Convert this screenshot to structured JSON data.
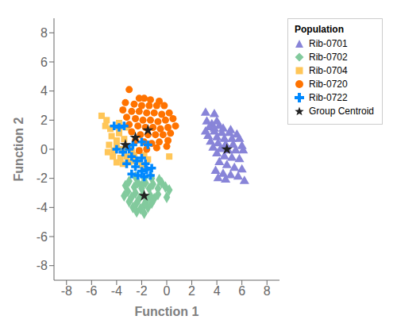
{
  "chart_data": {
    "type": "scatter",
    "xlabel": "Function 1",
    "ylabel": "Function 2",
    "xlim": [
      -9,
      9
    ],
    "ylim": [
      -9,
      9
    ],
    "xticks": [
      -8,
      -6,
      -4,
      -2,
      0,
      2,
      4,
      6,
      8
    ],
    "yticks": [
      -8,
      -6,
      -4,
      -2,
      0,
      2,
      4,
      6,
      8
    ],
    "grid": false,
    "legend": "right",
    "legend_title": "Population",
    "series": [
      {
        "name": "Rib-0701",
        "marker": "triangle",
        "color": "#8884d8",
        "values": [
          [
            3.1,
            2.5
          ],
          [
            3.8,
            2.4
          ],
          [
            3.2,
            1.9
          ],
          [
            4.0,
            1.9
          ],
          [
            3.6,
            1.7
          ],
          [
            4.2,
            1.6
          ],
          [
            3.4,
            1.5
          ],
          [
            4.5,
            1.4
          ],
          [
            3.8,
            1.4
          ],
          [
            5.1,
            1.3
          ],
          [
            3.1,
            1.2
          ],
          [
            3.8,
            1.2
          ],
          [
            4.4,
            1.1
          ],
          [
            5.0,
            1.1
          ],
          [
            5.6,
            1.0
          ],
          [
            3.3,
            0.9
          ],
          [
            4.0,
            0.8
          ],
          [
            4.6,
            0.7
          ],
          [
            5.2,
            0.7
          ],
          [
            5.8,
            0.7
          ],
          [
            3.5,
            0.5
          ],
          [
            4.1,
            0.4
          ],
          [
            4.7,
            0.3
          ],
          [
            5.3,
            0.3
          ],
          [
            6.0,
            0.2
          ],
          [
            3.7,
            0.1
          ],
          [
            4.3,
            0.0
          ],
          [
            4.9,
            -0.1
          ],
          [
            5.5,
            -0.1
          ],
          [
            6.1,
            -0.1
          ],
          [
            4.0,
            -0.3
          ],
          [
            4.6,
            -0.5
          ],
          [
            5.2,
            -0.6
          ],
          [
            5.8,
            -0.7
          ],
          [
            4.2,
            -0.9
          ],
          [
            4.8,
            -1.1
          ],
          [
            5.4,
            -1.3
          ],
          [
            6.0,
            -1.4
          ],
          [
            3.9,
            -1.5
          ],
          [
            4.5,
            -1.7
          ],
          [
            5.1,
            -1.8
          ],
          [
            5.7,
            -1.9
          ],
          [
            4.1,
            -2.0
          ],
          [
            4.7,
            -2.1
          ],
          [
            6.2,
            -2.2
          ]
        ]
      },
      {
        "name": "Rib-0702",
        "marker": "diamond",
        "color": "#82ca9d",
        "values": [
          [
            -2.5,
            -1.9
          ],
          [
            -1.8,
            -2.0
          ],
          [
            -1.2,
            -2.0
          ],
          [
            -0.6,
            -2.1
          ],
          [
            -3.0,
            -2.2
          ],
          [
            -2.3,
            -2.3
          ],
          [
            -1.7,
            -2.3
          ],
          [
            -1.1,
            -2.4
          ],
          [
            -0.4,
            -2.3
          ],
          [
            -3.3,
            -2.5
          ],
          [
            -2.6,
            -2.6
          ],
          [
            -2.0,
            -2.7
          ],
          [
            -1.4,
            -2.7
          ],
          [
            -0.7,
            -2.7
          ],
          [
            -0.1,
            -2.6
          ],
          [
            -3.1,
            -2.9
          ],
          [
            -2.5,
            -3.0
          ],
          [
            -1.9,
            -3.1
          ],
          [
            -1.3,
            -3.2
          ],
          [
            -0.7,
            -3.1
          ],
          [
            -3.4,
            -3.2
          ],
          [
            -2.8,
            -3.3
          ],
          [
            -2.2,
            -3.4
          ],
          [
            -1.6,
            -3.5
          ],
          [
            -1.0,
            -3.4
          ],
          [
            -3.0,
            -3.6
          ],
          [
            -2.4,
            -3.7
          ],
          [
            -1.8,
            -3.8
          ],
          [
            -1.2,
            -3.7
          ],
          [
            -2.7,
            -4.0
          ],
          [
            -2.1,
            -4.1
          ],
          [
            -1.5,
            -4.0
          ],
          [
            -2.4,
            -4.3
          ],
          [
            -1.8,
            -4.4
          ],
          [
            -2.0,
            -2.5
          ],
          [
            0.2,
            -2.8
          ],
          [
            0.0,
            -3.3
          ]
        ]
      },
      {
        "name": "Rib-0704",
        "marker": "square",
        "color": "#ffc658",
        "values": [
          [
            -5.2,
            2.3
          ],
          [
            -4.8,
            2.0
          ],
          [
            -4.9,
            1.6
          ],
          [
            -4.5,
            1.4
          ],
          [
            -3.8,
            1.4
          ],
          [
            -3.2,
            1.5
          ],
          [
            -3.8,
            1.1
          ],
          [
            -4.4,
            0.9
          ],
          [
            -4.0,
            0.6
          ],
          [
            -3.4,
            0.7
          ],
          [
            -4.6,
            0.3
          ],
          [
            -4.0,
            0.2
          ],
          [
            -3.5,
            0.0
          ],
          [
            -4.2,
            -0.1
          ],
          [
            -4.7,
            -0.2
          ],
          [
            -3.0,
            0.1
          ],
          [
            -4.3,
            -0.5
          ],
          [
            -3.7,
            -0.6
          ],
          [
            -3.2,
            -0.5
          ],
          [
            -2.6,
            -0.4
          ],
          [
            -4.0,
            -0.9
          ],
          [
            -3.5,
            -1.0
          ],
          [
            -3.0,
            -0.9
          ],
          [
            -2.5,
            -0.8
          ],
          [
            -2.8,
            -0.2
          ],
          [
            -2.2,
            -0.1
          ],
          [
            -1.8,
            -0.4
          ],
          [
            -2.0,
            -1.1
          ],
          [
            -1.5,
            -0.7
          ],
          [
            0.2,
            -0.5
          ],
          [
            -3.8,
            1.8
          ]
        ]
      },
      {
        "name": "Rib-0720",
        "marker": "circle",
        "color": "#ff7300",
        "values": [
          [
            -3.0,
            4.1
          ],
          [
            -2.2,
            3.5
          ],
          [
            -1.8,
            3.5
          ],
          [
            -1.3,
            3.4
          ],
          [
            -0.6,
            3.3
          ],
          [
            -3.3,
            3.2
          ],
          [
            -2.6,
            3.1
          ],
          [
            -2.0,
            3.0
          ],
          [
            -1.4,
            3.0
          ],
          [
            -0.8,
            3.0
          ],
          [
            -0.2,
            3.0
          ],
          [
            -3.5,
            2.7
          ],
          [
            -2.8,
            2.6
          ],
          [
            -2.2,
            2.6
          ],
          [
            -1.6,
            2.5
          ],
          [
            -1.0,
            2.5
          ],
          [
            -0.4,
            2.4
          ],
          [
            0.2,
            2.5
          ],
          [
            -3.2,
            2.2
          ],
          [
            -2.5,
            2.1
          ],
          [
            -1.9,
            2.0
          ],
          [
            -1.3,
            2.0
          ],
          [
            -0.7,
            1.9
          ],
          [
            -0.1,
            2.0
          ],
          [
            0.5,
            2.1
          ],
          [
            -3.0,
            1.7
          ],
          [
            -2.3,
            1.6
          ],
          [
            -1.7,
            1.5
          ],
          [
            -1.1,
            1.5
          ],
          [
            -0.5,
            1.4
          ],
          [
            0.1,
            1.5
          ],
          [
            0.7,
            1.6
          ],
          [
            -2.8,
            1.2
          ],
          [
            -2.1,
            1.0
          ],
          [
            -1.5,
            1.0
          ],
          [
            -0.9,
            1.0
          ],
          [
            -0.3,
            1.0
          ],
          [
            0.3,
            1.1
          ],
          [
            -2.5,
            0.6
          ],
          [
            -1.8,
            0.5
          ],
          [
            -1.2,
            0.4
          ],
          [
            -0.6,
            0.5
          ],
          [
            0.1,
            0.6
          ],
          [
            0.0,
            0.2
          ],
          [
            -2.2,
            -0.1
          ],
          [
            -1.6,
            0.0
          ],
          [
            -0.8,
            0.1
          ]
        ]
      },
      {
        "name": "Rib-0722",
        "marker": "cross",
        "color": "#0088fe",
        "values": [
          [
            -4.2,
            1.6
          ],
          [
            -3.8,
            1.5
          ],
          [
            -3.4,
            1.6
          ],
          [
            -4.0,
            0.0
          ],
          [
            -3.5,
            -0.2
          ],
          [
            -3.0,
            0.0
          ],
          [
            -2.8,
            -0.5
          ],
          [
            -2.4,
            -0.8
          ],
          [
            -2.0,
            -0.6
          ],
          [
            -1.7,
            -1.0
          ],
          [
            -2.5,
            -1.2
          ],
          [
            -2.0,
            -1.5
          ],
          [
            -1.6,
            -1.4
          ],
          [
            -1.2,
            -1.3
          ],
          [
            -2.8,
            -1.7
          ],
          [
            -2.3,
            -1.8
          ],
          [
            -1.8,
            -1.9
          ],
          [
            -1.3,
            -1.8
          ],
          [
            -2.0,
            0.5
          ],
          [
            -1.5,
            0.3
          ],
          [
            -3.2,
            -1.0
          ],
          [
            -2.7,
            0.3
          ]
        ]
      },
      {
        "name": "Group Centroid",
        "marker": "star",
        "color": "#222222",
        "values": [
          [
            -1.5,
            1.3
          ],
          [
            -1.8,
            -3.2
          ],
          [
            -3.3,
            0.3
          ],
          [
            -2.5,
            0.8
          ],
          [
            4.8,
            0.0
          ]
        ]
      }
    ]
  }
}
